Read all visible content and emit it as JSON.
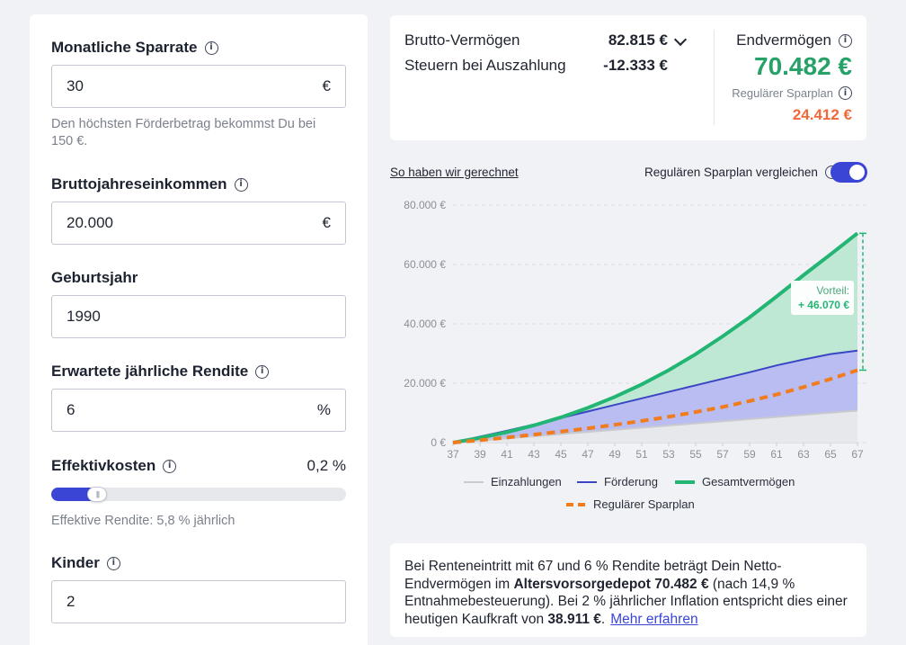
{
  "left": {
    "savings_rate": {
      "label": "Monatliche Sparrate",
      "value": "30",
      "unit": "€",
      "hint": "Den höchsten Förderbetrag bekommst Du bei 150 €."
    },
    "gross_income": {
      "label": "Bruttojahreseinkommen",
      "value": "20.000",
      "unit": "€"
    },
    "birth_year": {
      "label": "Geburtsjahr",
      "value": "1990"
    },
    "return": {
      "label": "Erwartete jährliche Rendite",
      "value": "6",
      "unit": "%"
    },
    "costs": {
      "label": "Effektivkosten",
      "value": "0,2 %",
      "slider_fraction": 0.16,
      "hint": "Effektive Rendite: 5,8 % jährlich"
    },
    "children": {
      "label": "Kinder",
      "value": "2"
    }
  },
  "summary": {
    "gross_label": "Brutto-Vermögen",
    "gross_value": "82.815 €",
    "tax_label": "Steuern bei Auszahlung",
    "tax_value": "-12.333 €",
    "end_label": "Endvermögen",
    "end_value": "70.482 €",
    "regular_label": "Regulärer Sparplan",
    "regular_value": "24.412 €"
  },
  "controls": {
    "calc_link": "So haben wir gerechnet",
    "compare_label": "Regulären Sparplan vergleichen",
    "compare_on": true
  },
  "colors": {
    "accent": "#3a45d6",
    "green": "#26a269",
    "orange": "#f0693a"
  },
  "chart_data": {
    "type": "area",
    "x": [
      37,
      39,
      41,
      43,
      45,
      47,
      49,
      51,
      53,
      55,
      57,
      59,
      61,
      63,
      65,
      67
    ],
    "y_ticks": [
      "0 €",
      "20.000 €",
      "40.000 €",
      "60.000 €",
      "80.000 €"
    ],
    "ylim": [
      0,
      80000
    ],
    "series": [
      {
        "name": "Einzahlungen",
        "values": [
          0,
          720,
          1440,
          2160,
          2880,
          3600,
          4320,
          5040,
          5760,
          6480,
          7200,
          7920,
          8640,
          9360,
          10080,
          10800
        ]
      },
      {
        "name": "Förderung",
        "values": [
          0,
          2000,
          4000,
          6100,
          8300,
          10500,
          12700,
          14900,
          17100,
          19300,
          21500,
          23700,
          26000,
          28000,
          29800,
          31000
        ]
      },
      {
        "name": "Gesamtvermögen",
        "values": [
          0,
          1600,
          3500,
          5800,
          8500,
          11700,
          15400,
          19600,
          24400,
          29800,
          35800,
          42200,
          49200,
          56400,
          63400,
          70500
        ]
      },
      {
        "name": "Regulärer Sparplan",
        "values": [
          0,
          800,
          1700,
          2700,
          3700,
          4800,
          6000,
          7300,
          8700,
          10300,
          12000,
          14000,
          16200,
          18700,
          21400,
          24400
        ]
      }
    ],
    "annotation": {
      "label": "Vorteil:",
      "value": "+ 46.070 €"
    },
    "grid": true,
    "legend": "bottom"
  },
  "footer": {
    "p1": "Bei Renteneintritt mit 67 und 6 % Rendite beträgt Dein Netto-Endvermögen im ",
    "b1": "Altersvorsorgedepot 70.482 €",
    "p2": " (nach 14,9 % Entnahmebesteuerung). Bei 2 % jährlicher Inflation entspricht dies einer heutigen Kaufkraft von ",
    "b2": "38.911 €",
    "p3": ".",
    "link": "Mehr erfahren"
  }
}
